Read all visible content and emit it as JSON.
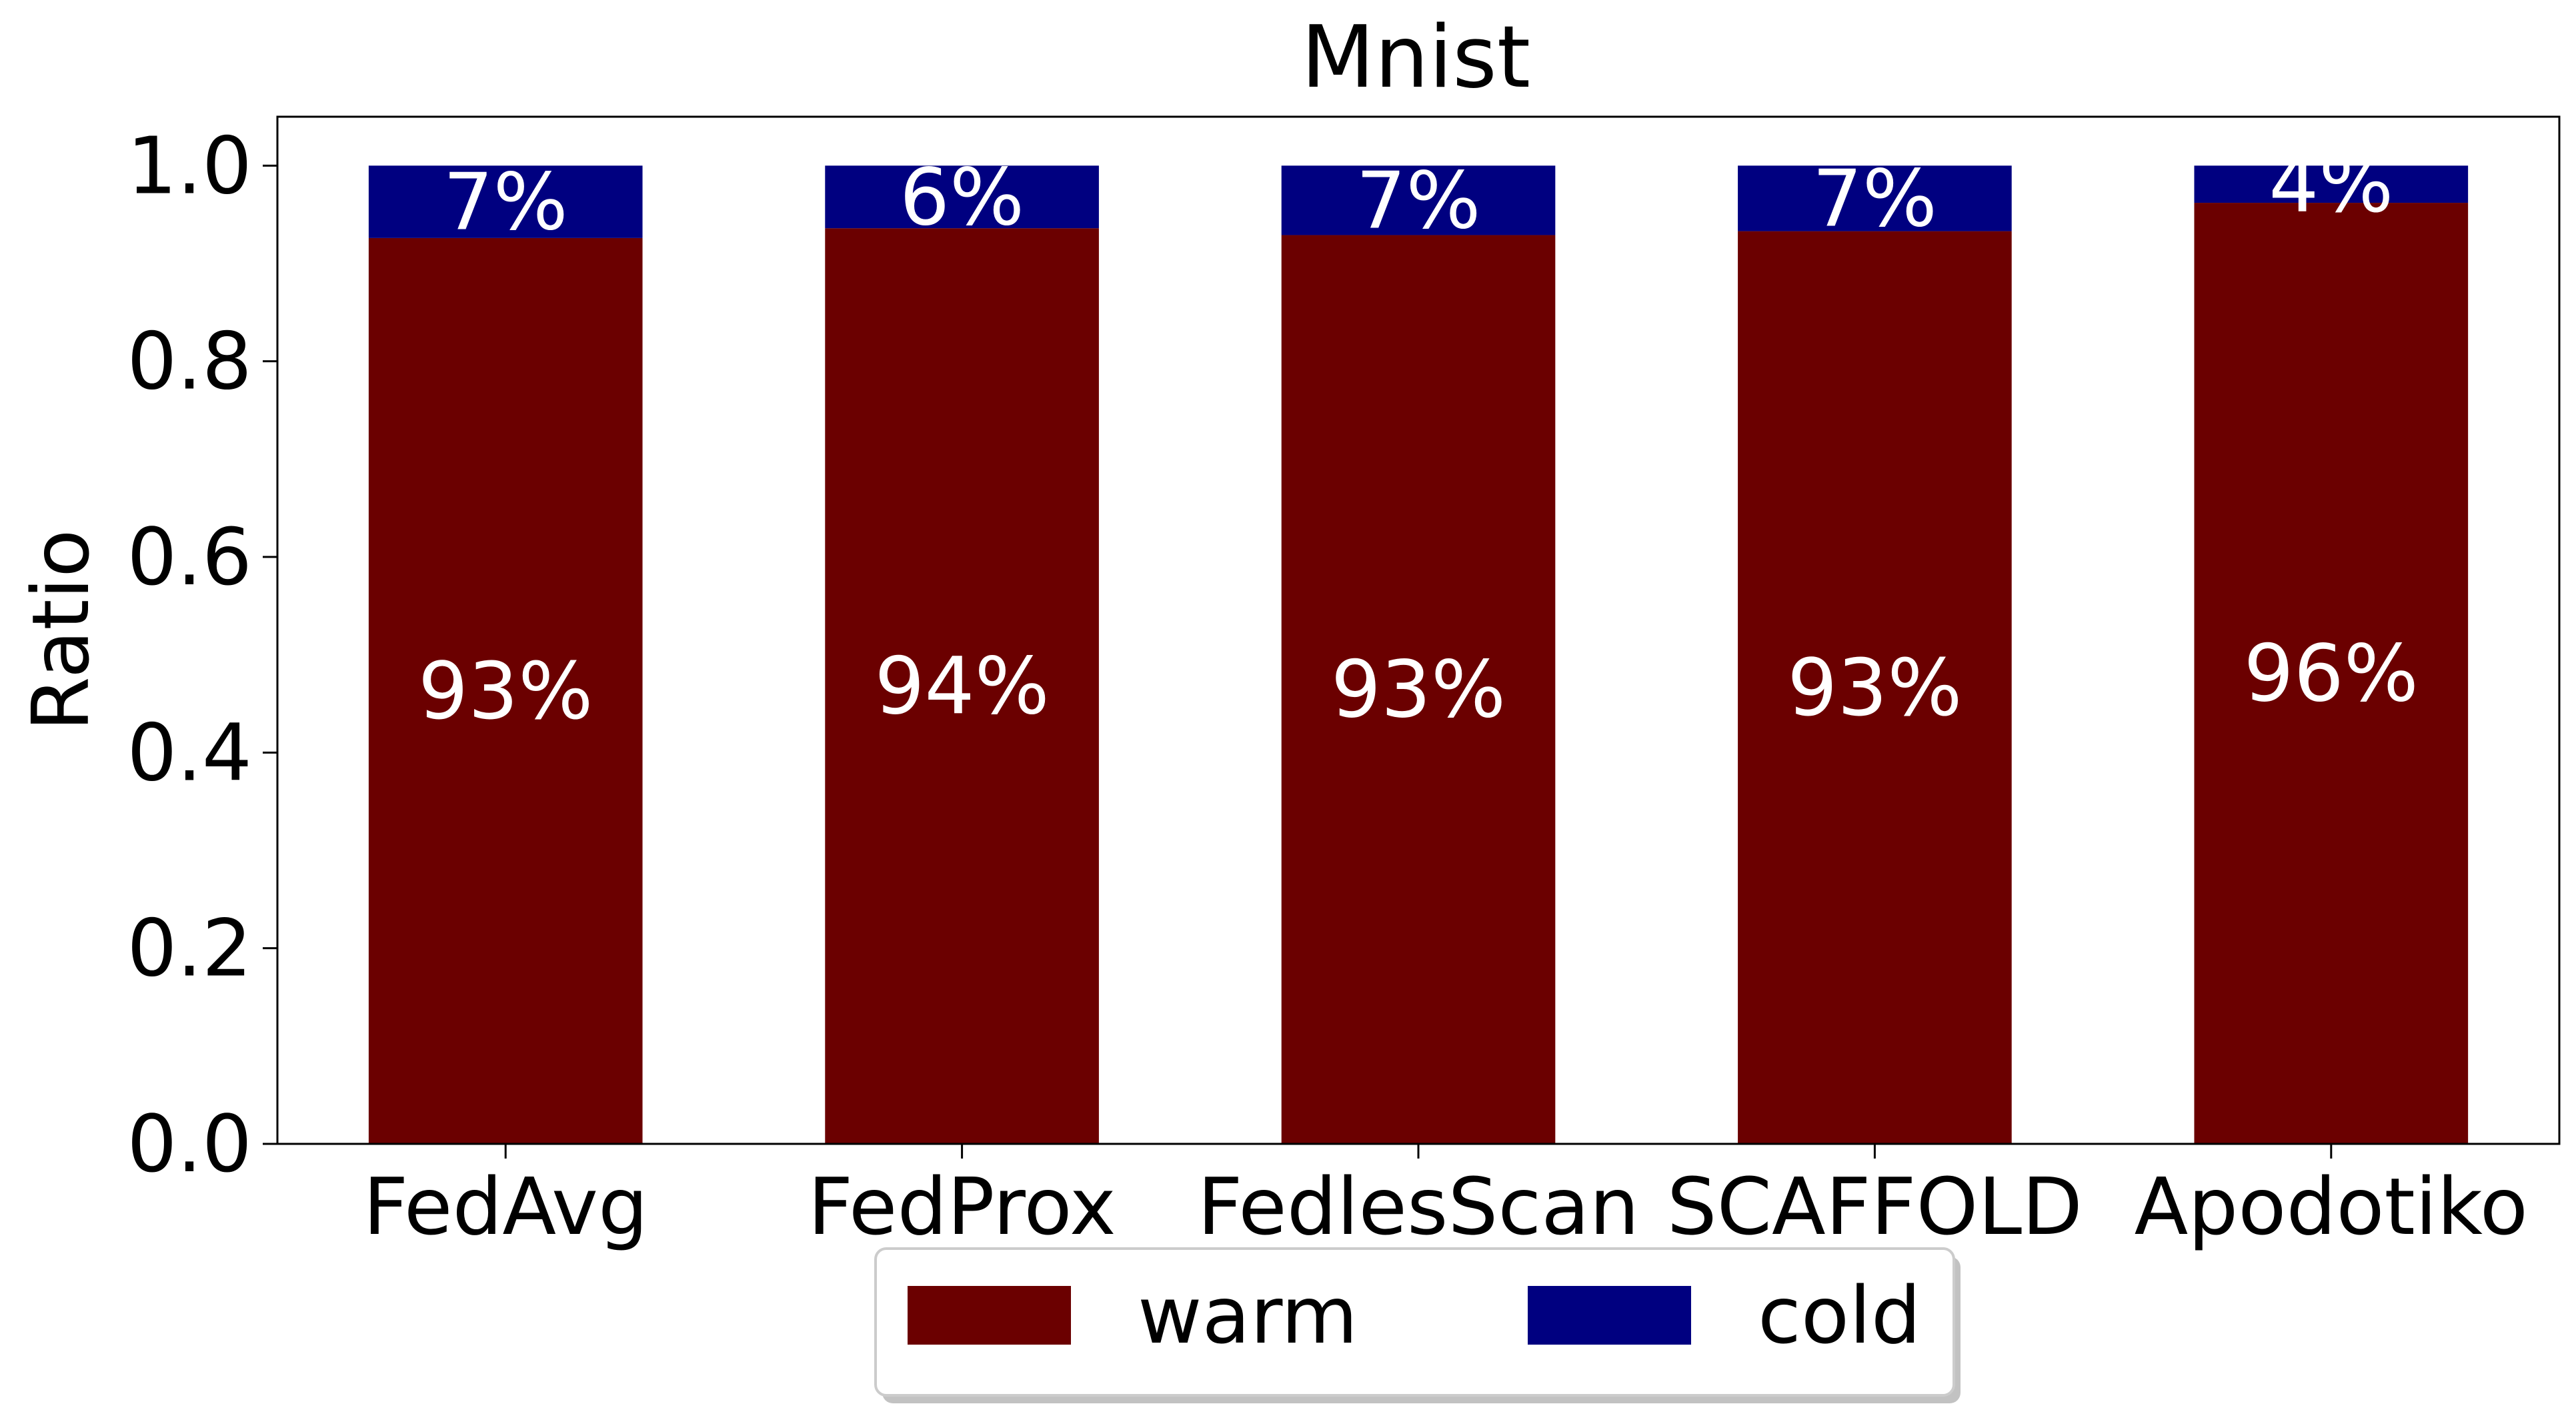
{
  "chart_data": {
    "type": "bar",
    "stacked": true,
    "title": "Mnist",
    "xlabel": "",
    "ylabel": "Ratio",
    "ylim": [
      0.0,
      1.05
    ],
    "yticks": [
      0.0,
      0.2,
      0.4,
      0.6,
      0.8,
      1.0
    ],
    "ytick_labels": [
      "0.0",
      "0.2",
      "0.4",
      "0.6",
      "0.8",
      "1.0"
    ],
    "categories": [
      "FedAvg",
      "FedProx",
      "FedlesScan",
      "SCAFFOLD",
      "Apodotiko"
    ],
    "series": [
      {
        "name": "warm",
        "color": "#6b0000",
        "values": [
          0.926,
          0.936,
          0.929,
          0.933,
          0.962
        ],
        "labels": [
          "93%",
          "94%",
          "93%",
          "93%",
          "96%"
        ]
      },
      {
        "name": "cold",
        "color": "#000080",
        "values": [
          0.074,
          0.064,
          0.071,
          0.067,
          0.038
        ],
        "labels": [
          "7%",
          "6%",
          "7%",
          "7%",
          "4%"
        ]
      }
    ],
    "grid": false,
    "legend": {
      "position": "bottom-center",
      "ncol": 2
    }
  }
}
